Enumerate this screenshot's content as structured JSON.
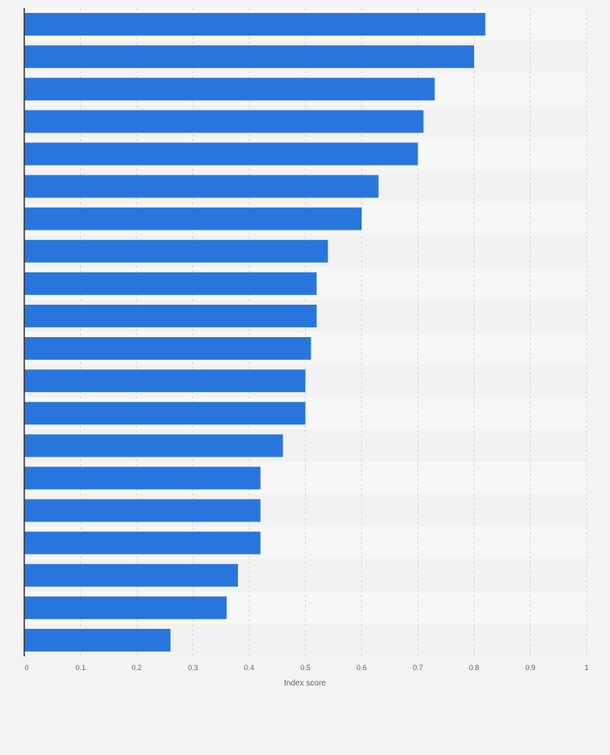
{
  "chart_data": {
    "type": "bar",
    "orientation": "horizontal",
    "title": "",
    "xlabel": "Index score",
    "ylabel": "",
    "xlim": [
      0,
      1
    ],
    "x_ticks": [
      "0",
      "0.1",
      "0.2",
      "0.3",
      "0.4",
      "0.5",
      "0.6",
      "0.7",
      "0.8",
      "0.9",
      "1"
    ],
    "categories": [
      "",
      "",
      "",
      "",
      "",
      "",
      "",
      "",
      "",
      "",
      "",
      "",
      "",
      "",
      "",
      "",
      "",
      "",
      "",
      ""
    ],
    "values": [
      0.82,
      0.8,
      0.73,
      0.71,
      0.7,
      0.63,
      0.6,
      0.54,
      0.52,
      0.52,
      0.51,
      0.5,
      0.5,
      0.46,
      0.42,
      0.42,
      0.42,
      0.38,
      0.36,
      0.26
    ],
    "grid": true,
    "legend": "none",
    "colors": {
      "bar": "#2876dd",
      "band_light": "#f7f7f7",
      "band_dark": "#f2f2f2",
      "grid": "#d6d6d6",
      "axis": "#333333",
      "tick_text": "#666666",
      "background": "#f3f3f3"
    }
  }
}
